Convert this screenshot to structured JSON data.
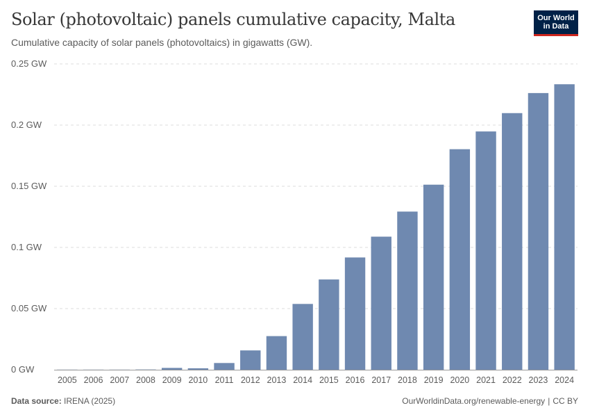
{
  "header": {
    "title": "Solar (photovoltaic) panels cumulative capacity, Malta",
    "subtitle": "Cumulative capacity of solar panels (photovoltaics) in gigawatts (GW).",
    "logo_line1": "Our World",
    "logo_line2": "in Data"
  },
  "footer": {
    "source_label": "Data source:",
    "source_value": "IRENA (2025)",
    "url": "OurWorldinData.org/renewable-energy",
    "separator": "|",
    "license": "CC BY"
  },
  "colors": {
    "bar": "#6f89b0",
    "grid": "#dddddd",
    "axis": "#999999",
    "text": "#5b5b5b",
    "logo_bg": "#002147",
    "logo_accent": "#ce261e"
  },
  "chart_data": {
    "type": "bar",
    "title": "Solar (photovoltaic) panels cumulative capacity, Malta",
    "subtitle": "Cumulative capacity of solar panels (photovoltaics) in gigawatts (GW).",
    "categories": [
      "2005",
      "2006",
      "2007",
      "2008",
      "2009",
      "2010",
      "2011",
      "2012",
      "2013",
      "2014",
      "2015",
      "2016",
      "2017",
      "2018",
      "2019",
      "2020",
      "2021",
      "2022",
      "2023",
      "2024"
    ],
    "values": [
      0.0001,
      0.0001,
      0.0001,
      0.0002,
      0.0015,
      0.0012,
      0.0055,
      0.0158,
      0.0275,
      0.0538,
      0.0738,
      0.0918,
      0.1088,
      0.1293,
      0.1513,
      0.1803,
      0.1948,
      0.2098,
      0.2262,
      0.2334
    ],
    "unit": "GW",
    "yticks": [
      0,
      0.05,
      0.1,
      0.15,
      0.2,
      0.25
    ],
    "ytick_labels": [
      "0 GW",
      "0.05 GW",
      "0.1 GW",
      "0.15 GW",
      "0.2 GW",
      "0.25 GW"
    ],
    "ylim": [
      0,
      0.25
    ],
    "grid": true,
    "legend": false
  }
}
